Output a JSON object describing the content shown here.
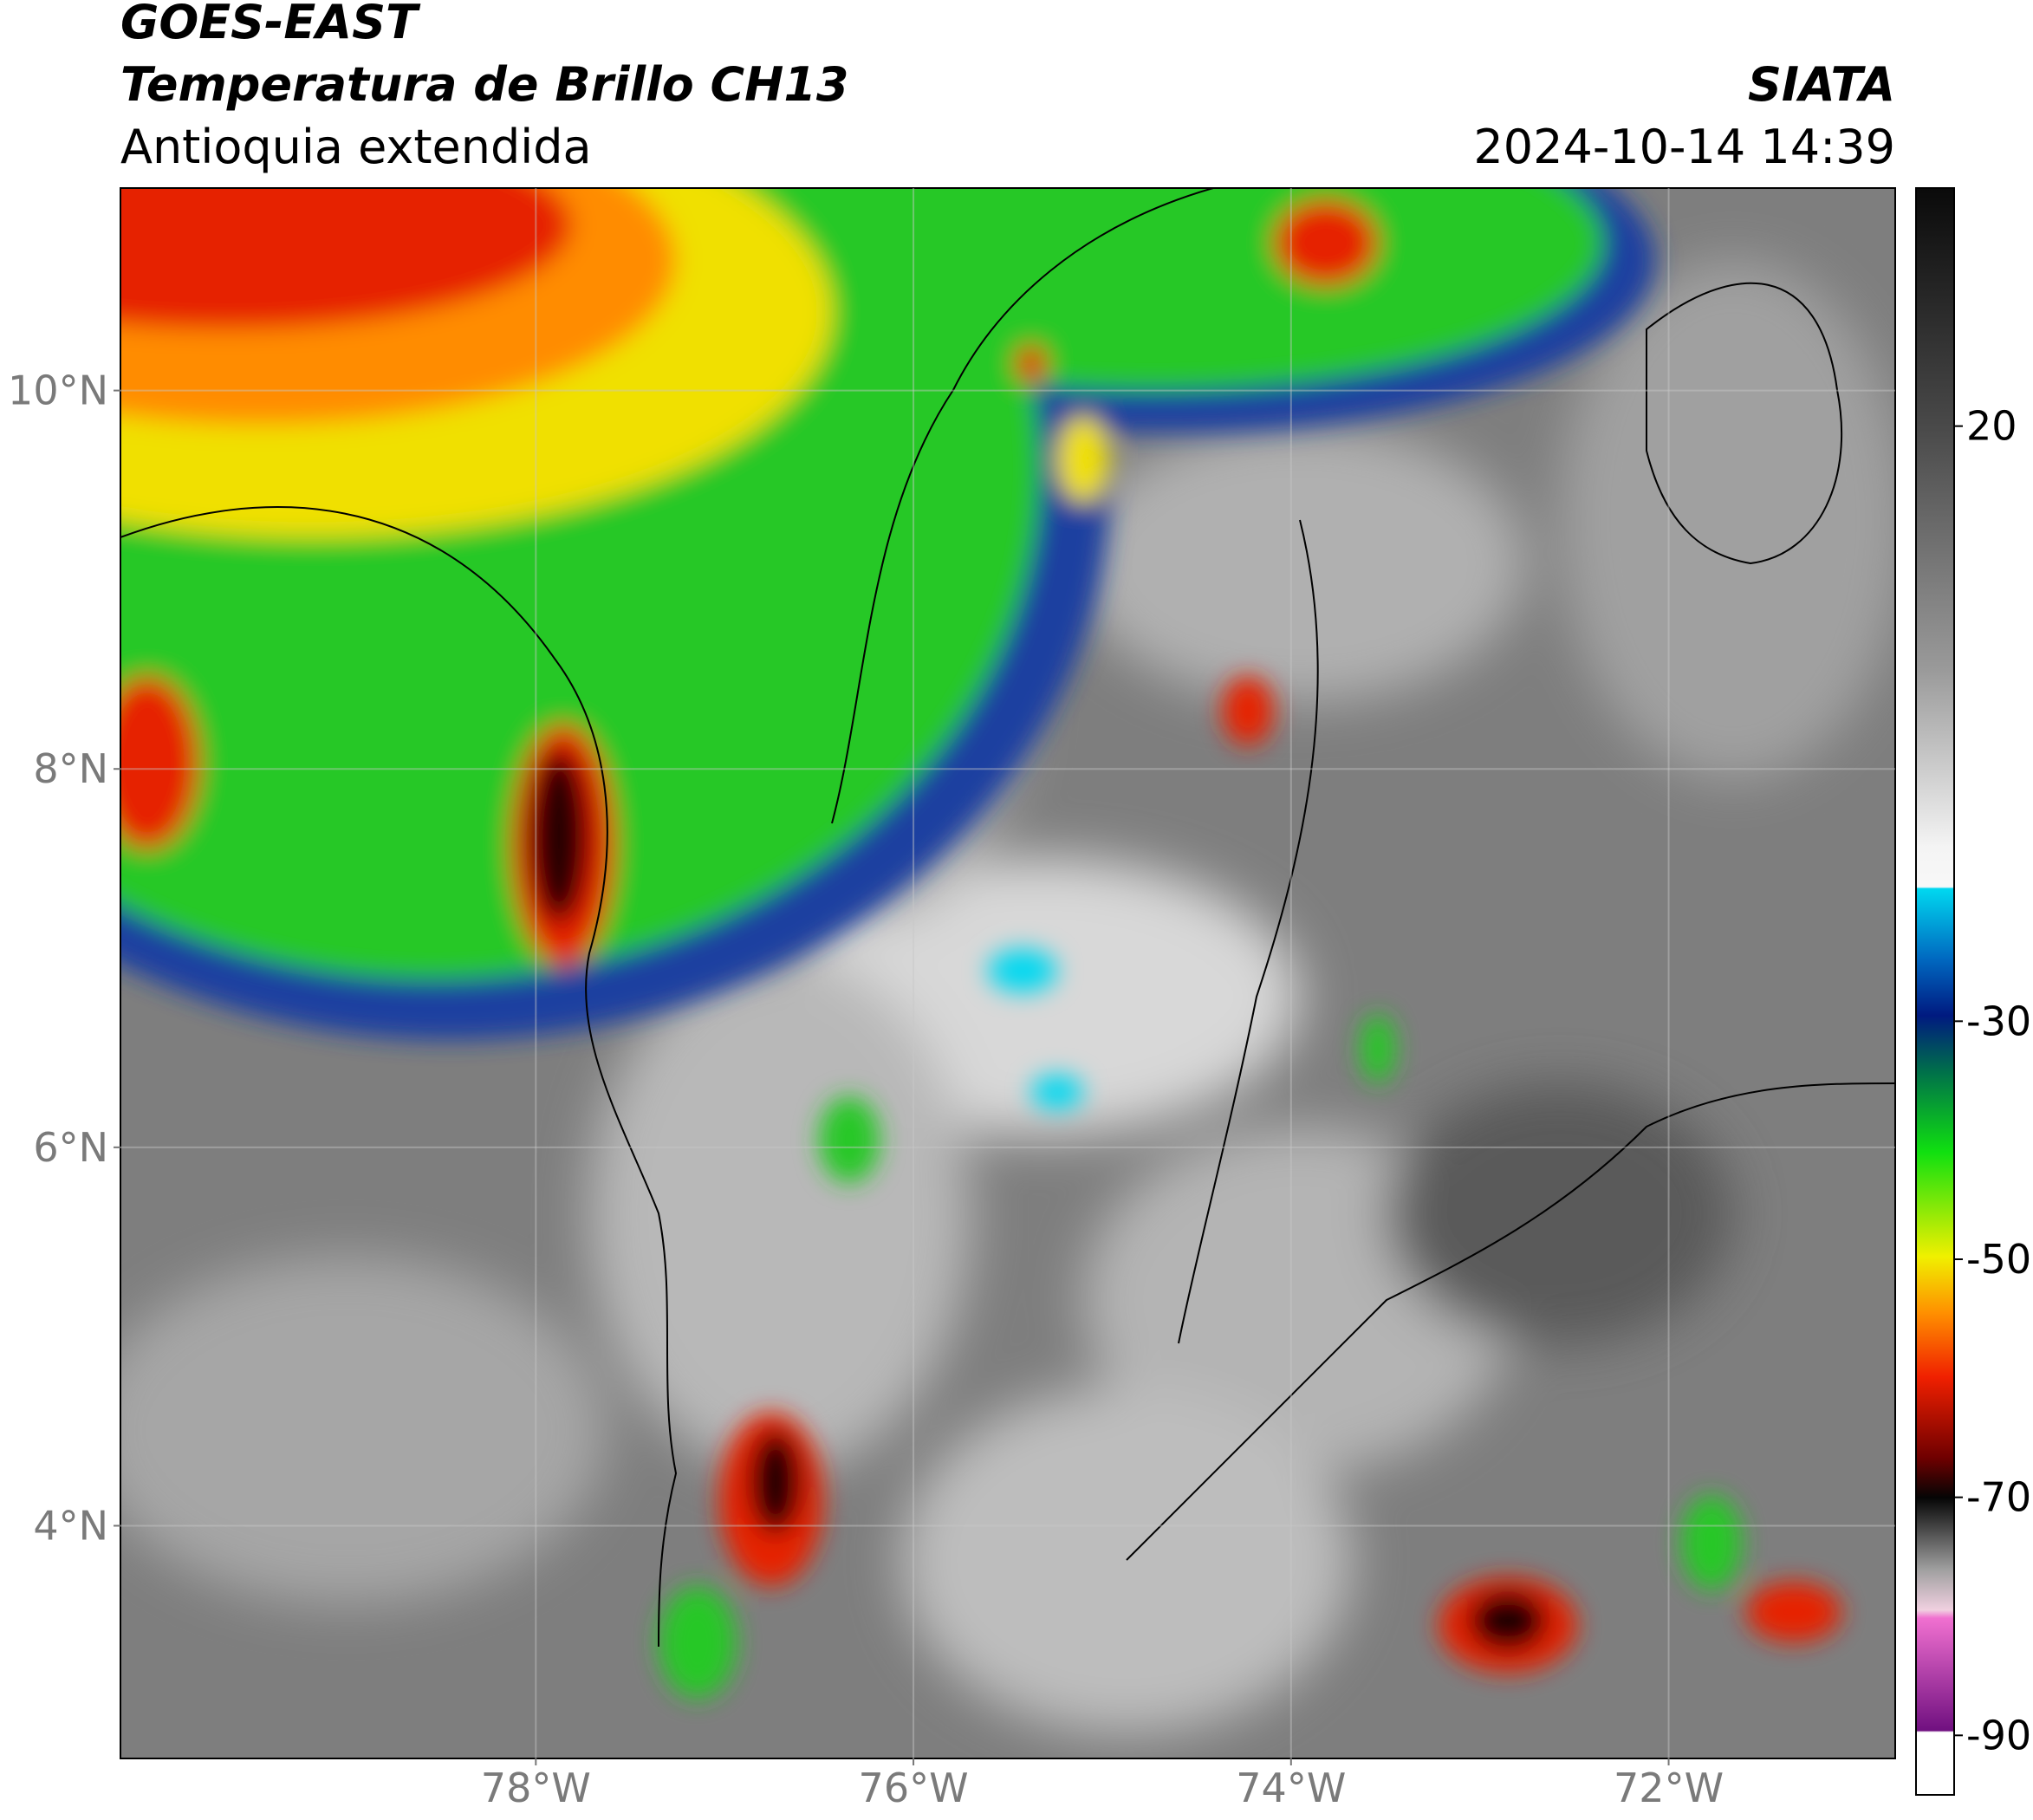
{
  "header": {
    "title": "GOES-EAST",
    "subtitle": "Temperatura de Brillo CH13",
    "region": "Antioquia extendida",
    "source": "SIATA",
    "timestamp": "2024-10-14 14:39"
  },
  "map": {
    "lon_range": [
      -80.2,
      -70.8
    ],
    "lat_range": [
      2.77,
      11.07
    ],
    "lon_ticks": [
      {
        "value": -78,
        "label": "78°W"
      },
      {
        "value": -76,
        "label": "76°W"
      },
      {
        "value": -74,
        "label": "74°W"
      },
      {
        "value": -72,
        "label": "72°W"
      }
    ],
    "lat_ticks": [
      {
        "value": 10,
        "label": "10°N"
      },
      {
        "value": 8,
        "label": "8°N"
      },
      {
        "value": 6,
        "label": "6°N"
      },
      {
        "value": 4,
        "label": "4°N"
      }
    ]
  },
  "colorbar": {
    "range": [
      -95,
      40
    ],
    "ticks": [
      20,
      -30,
      -50,
      -70,
      -90
    ]
  }
}
